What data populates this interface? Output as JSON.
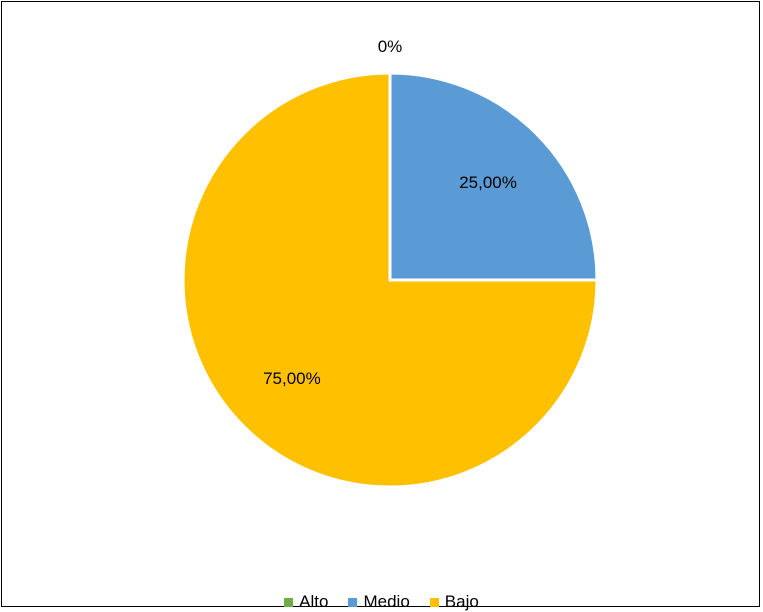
{
  "chart_data": {
    "type": "pie",
    "categories": [
      "Alto",
      "Medio",
      "Bajo"
    ],
    "values": [
      0,
      25,
      75
    ],
    "data_labels": [
      "0%",
      "25,00%",
      "75,00%"
    ],
    "colors": [
      "#70AD47",
      "#5B9BD5",
      "#FFC000"
    ],
    "legend_position": "bottom",
    "start_angle": "top",
    "direction": "clockwise"
  }
}
